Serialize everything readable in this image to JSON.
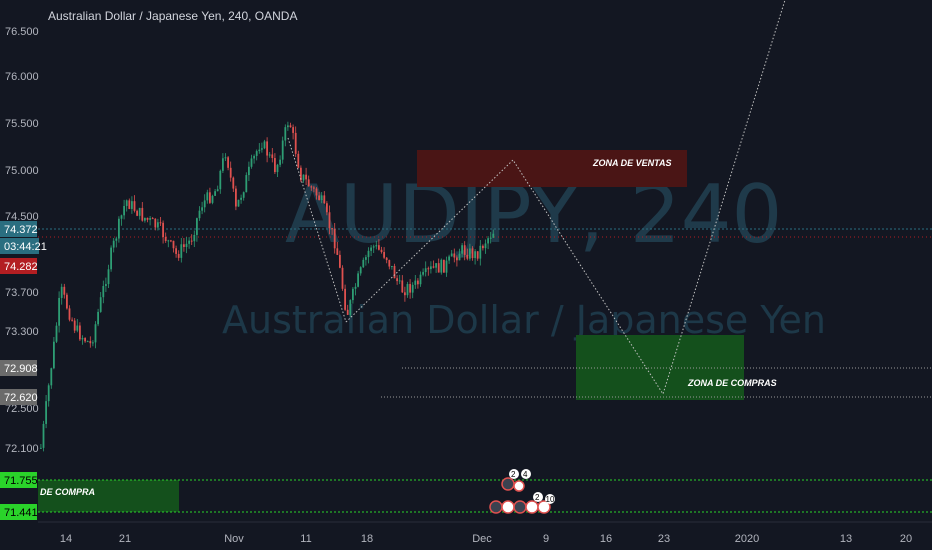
{
  "header": {
    "title": "Australian Dollar / Japanese Yen, 240, OANDA"
  },
  "watermark": {
    "symbol": "AUDJPY, 240",
    "description": "Australian Dollar / Japanese Yen"
  },
  "price_axis": {
    "ticks": [
      "76.500",
      "76.000",
      "75.500",
      "75.000",
      "74.500",
      "73.700",
      "73.300",
      "72.500",
      "72.100"
    ],
    "tags": [
      {
        "label": "74.372",
        "color": "#2a6e80"
      },
      {
        "label": "03:44:21",
        "color": "#2a6e80"
      },
      {
        "label": "74.282",
        "color": "#b31e22"
      },
      {
        "label": "72.908",
        "color": "#6b6b6b"
      },
      {
        "label": "72.620",
        "color": "#6b6b6b"
      },
      {
        "label": "71.755",
        "color": "#2ad32a"
      },
      {
        "label": "71.441",
        "color": "#2ad32a"
      }
    ]
  },
  "time_axis": {
    "ticks": [
      "14",
      "21",
      "Nov",
      "11",
      "18",
      "Dec",
      "9",
      "16",
      "23",
      "2020",
      "13",
      "20"
    ]
  },
  "zones": {
    "sell": "ZONA DE VENTAS",
    "buy": "ZONA DE COMPRAS",
    "lower": "DE COMPRA"
  },
  "events": {
    "upper": [
      "2",
      "4"
    ],
    "lower": [
      "2",
      "10"
    ]
  },
  "colors": {
    "background": "#131722",
    "up_candle": "#2e9e74",
    "down_candle": "#e0514f",
    "sell_zone": "#4a1515",
    "buy_zone": "#14501c",
    "current_price_line": "#2a6e80",
    "guide_line": "#c0c0c0"
  },
  "chart_data": {
    "type": "candlestick",
    "symbol": "AUDJPY",
    "interval": "240",
    "close_path": [
      [
        "Oct 9",
        72.1
      ],
      [
        "Oct 10",
        72.9
      ],
      [
        "Oct 11",
        73.7
      ],
      [
        "Oct 14",
        73.3
      ],
      [
        "Oct 17",
        73.5
      ],
      [
        "Oct 19",
        74.2
      ],
      [
        "Oct 21",
        74.7
      ],
      [
        "Oct 23",
        74.4
      ],
      [
        "Oct 25",
        74.1
      ],
      [
        "Oct 28",
        74.3
      ],
      [
        "Oct 30",
        75.0
      ],
      [
        "Nov 1",
        74.5
      ],
      [
        "Nov 4",
        75.3
      ],
      [
        "Nov 6",
        74.9
      ],
      [
        "Nov 8",
        75.6
      ],
      [
        "Nov 11",
        74.8
      ],
      [
        "Nov 13",
        74.3
      ],
      [
        "Nov 15",
        73.4
      ],
      [
        "Nov 18",
        74.0
      ],
      [
        "Nov 20",
        73.6
      ],
      [
        "Nov 22",
        73.9
      ],
      [
        "Nov 25",
        73.8
      ],
      [
        "Nov 27",
        74.0
      ],
      [
        "Nov 29",
        74.1
      ],
      [
        "Dec 3",
        74.37
      ]
    ],
    "current_price": 74.372,
    "projection": [
      [
        "Nov 15",
        73.4
      ],
      [
        "Dec 5",
        75.1
      ],
      [
        "Dec 24",
        72.62
      ],
      [
        "Jan 6",
        77.0
      ]
    ],
    "price_range": [
      71.3,
      76.7
    ]
  }
}
